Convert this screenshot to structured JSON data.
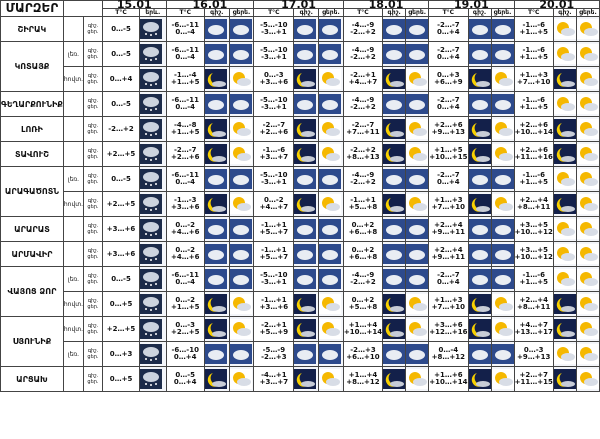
{
  "title": "ՄԱՐԶԵՐ",
  "dates": [
    "15.01",
    "16.01",
    "17.01",
    "18.01",
    "19.01",
    "20.01"
  ],
  "headers": {
    "temp": "T°C",
    "sky": "երև.",
    "day": "ցերե.",
    "night": "գիշ."
  },
  "row_labels": {
    "night": "գիշ.",
    "day": "ցեր."
  },
  "regions": [
    {
      "name": "ՇԻՐԱԿ",
      "sub": "",
      "temps": [
        "0…-5",
        "-6…-11\n0…-4",
        "-5…-10\n-3…+1",
        "-4…-9\n-2…+2",
        "-2…-7\n0…+4",
        "-1…-6\n+1…+5"
      ]
    },
    {
      "name": "ԿՈՏԱՅՔ",
      "sub": "լեռ.",
      "temps": [
        "0…-5",
        "-6…-11\n0…-4",
        "-5…-10\n-3…+1",
        "-4…-9\n-2…+2",
        "-2…-7\n0…+4",
        "-1…-6\n+1…+5"
      ]
    },
    {
      "name": "",
      "sub": "հովտ.",
      "temps": [
        "0…+4",
        "-1…-4\n+1…+5",
        "0…-3\n+3…+6",
        "-2…+1\n+4…+7",
        "0…+3\n+6…+9",
        "+1…+3\n+7…+10"
      ]
    },
    {
      "name": "ԳԵՂԱՐՔՈՒՆԻՔ",
      "sub": "",
      "temps": [
        "0…-5",
        "-6…-11\n0…-4",
        "-5…-10\n-3…+1",
        "-4…-9\n-2…+2",
        "-2…-7\n0…+4",
        "-1…-6\n+1…+5"
      ]
    },
    {
      "name": "ԼՈՌԻ",
      "sub": "",
      "temps": [
        "-2…+2",
        "-4…-8\n+1…+5",
        "-2…-7\n+2…+6",
        "-2…-7\n+7…+11",
        "+2…+6\n+9…+13",
        "+2…+6\n+10…+14"
      ]
    },
    {
      "name": "ՏԱՎՈՒՇ",
      "sub": "",
      "temps": [
        "+2…+5",
        "-2…-7\n+2…+6",
        "-1…-6\n+3…+7",
        "-2…+2\n+8…+13",
        "+1…+5\n+10…+15",
        "+2…+6\n+11…+16"
      ]
    },
    {
      "name": "ԱՐԱԳԱԾՈՏՆ",
      "sub": "լեռ.",
      "temps": [
        "0…-5",
        "-6…-11\n0…-4",
        "-5…-10\n-3…+1",
        "-4…-9\n-2…+2",
        "-2…-7\n0…+4",
        "-1…-6\n+1…+5"
      ]
    },
    {
      "name": "",
      "sub": "հովտ.",
      "temps": [
        "+2…+5",
        "-1…-3\n+3…+6",
        "0…-2\n+4…+7",
        "-1…+1\n+5…+8",
        "+1…+3\n+7…+10",
        "+2…+4\n+8…+11"
      ]
    },
    {
      "name": "ԱՐԱՐԱՏ",
      "sub": "",
      "temps": [
        "+3…+6",
        "0…-2\n+4…+6",
        "-1…+1\n+5…+7",
        "0…+2\n+6…+8",
        "+2…+4\n+9…+11",
        "+3…+5\n+10…+12"
      ]
    },
    {
      "name": "ԱՐՄԱՎԻՐ",
      "sub": "",
      "temps": [
        "+3…+6",
        "0…-2\n+4…+6",
        "-1…+1\n+5…+7",
        "0…+2\n+6…+8",
        "+2…+4\n+9…+11",
        "+3…+5\n+10…+12"
      ]
    },
    {
      "name": "ՎԱՅՈՑ ՁՈՐ",
      "sub": "լեռ.",
      "temps": [
        "0…-5",
        "-6…-11\n0…-4",
        "-5…-10\n-3…+1",
        "-4…-9\n-2…+2",
        "-2…-7\n0…+4",
        "-1…-6\n+1…+5"
      ]
    },
    {
      "name": "",
      "sub": "հովտ.",
      "temps": [
        "0…+5",
        "0…-2\n+1…+5",
        "-1…+1\n+3…+6",
        "0…+2\n+5…+8",
        "+1…+3\n+7…+10",
        "+2…+4\n+8…+11"
      ]
    },
    {
      "name": "ՍՅՈՒՆԻՔ",
      "sub": "հովտ.",
      "temps": [
        "+2…+5",
        "0…-3\n+2…+5",
        "-2…+1\n+5…+9",
        "+1…+4\n+10…+14",
        "+3…+6\n+12…+16",
        "+4…+7\n+13…+17"
      ]
    },
    {
      "name": "",
      "sub": "լեռ.",
      "temps": [
        "0…+3",
        "-6…-10\n0…+4",
        "-5…-9\n-2…+3",
        "-2…+3\n+6…+10",
        "0…-4\n+8…+12",
        "0…-3\n+9…+13"
      ]
    },
    {
      "name": "ԱՐՑԱԽ",
      "sub": "",
      "temps": [
        "0…+5",
        "0…-5\n0…+4",
        "-4…+1\n+3…+7",
        "+1…+4\n+8…+12",
        "+1…+6\n+10…+14",
        "+2…+7\n+11…+15"
      ]
    }
  ]
}
